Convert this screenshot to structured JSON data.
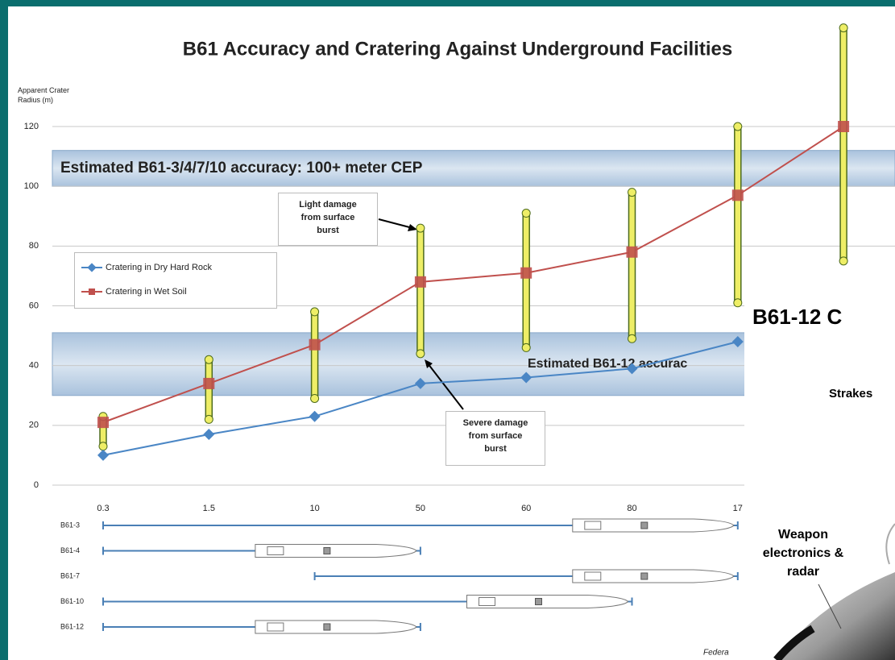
{
  "chart_data": {
    "type": "line",
    "title": "B61 Accuracy and Cratering Against Underground Facilities",
    "y_label": "Apparent Crater Radius (m)",
    "categories": [
      "0.3",
      "1.5",
      "10",
      "50",
      "60",
      "80",
      "17",
      null
    ],
    "series": [
      {
        "name": "Cratering in Dry Hard Rock",
        "color": "#4a86c5",
        "marker": "diamond",
        "values": [
          10,
          17,
          23,
          34,
          36,
          39,
          48,
          null
        ]
      },
      {
        "name": "Cratering in Wet Soil",
        "color": "#c0504d",
        "marker": "square",
        "values": [
          21,
          34,
          47,
          68,
          71,
          78,
          97,
          120
        ]
      }
    ],
    "ranges": {
      "color": "#eeee66",
      "edge": "#4d6b1e",
      "low": [
        13,
        22,
        29,
        44,
        46,
        49,
        61,
        75
      ],
      "high": [
        23,
        42,
        58,
        86,
        91,
        98,
        120,
        153
      ]
    },
    "bands": [
      {
        "label": "Estimated B61-3/4/7/10 accuracy: 100+ meter CEP",
        "range": [
          100,
          112
        ]
      },
      {
        "label": "Estimated B61-12 accurac",
        "range": [
          30,
          51
        ]
      }
    ],
    "callouts": [
      "Light damage from surface burst",
      "Severe damage from surface burst"
    ],
    "weapons": [
      {
        "name": "B61-3",
        "from": 0,
        "to": 6
      },
      {
        "name": "B61-4",
        "from": 0,
        "to": 3
      },
      {
        "name": "B61-7",
        "from": 2,
        "to": 6
      },
      {
        "name": "B61-10",
        "from": 0,
        "to": 5
      },
      {
        "name": "B61-12",
        "from": 0,
        "to": 3
      }
    ],
    "source": "Federa",
    "ylim": [
      0,
      120
    ],
    "yticks": [
      0,
      20,
      40,
      60,
      80,
      100,
      120
    ],
    "grid": true
  },
  "overlay": {
    "title": "B61-12 C",
    "labels": [
      "Strakes",
      "Weapon electronics & radar"
    ]
  }
}
